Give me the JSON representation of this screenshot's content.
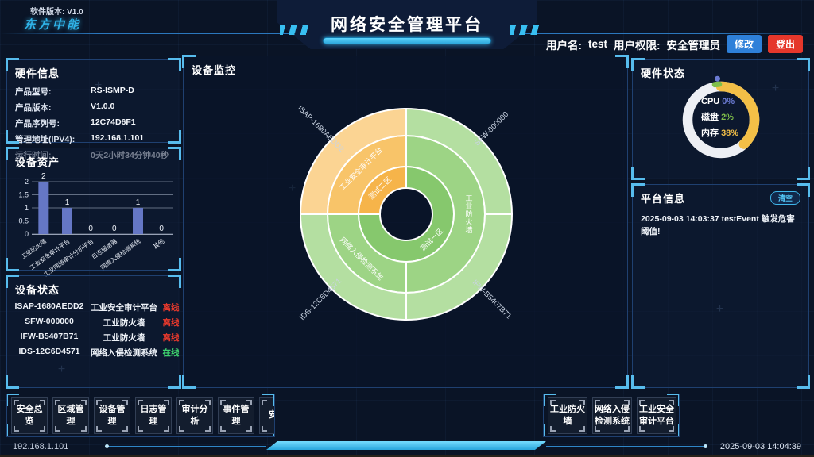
{
  "header": {
    "software_version": "软件版本: V1.0",
    "logo": "东方中能",
    "title": "网络安全管理平台",
    "username_label": "用户名:",
    "username": "test",
    "permission_label": "用户权限:",
    "permission": "安全管理员",
    "modify_button": "修改",
    "logout_button": "登出"
  },
  "hardware_info": {
    "title": "硬件信息",
    "rows": [
      {
        "label": "产品型号:",
        "value": "RS-ISMP-D"
      },
      {
        "label": "产品版本:",
        "value": "V1.0.0"
      },
      {
        "label": "产品序列号:",
        "value": "12C74D6F1"
      },
      {
        "label": "管理地址(IPV4):",
        "value": "192.168.1.101"
      },
      {
        "label": "运行时间:",
        "value": "0天2小时34分钟40秒"
      }
    ]
  },
  "device_assets": {
    "title": "设备资产",
    "chart": {
      "type": "bar",
      "bar_color": "#6577c5",
      "y_ticks": [
        0,
        0.5,
        1,
        1.5,
        2
      ],
      "y_max": 2,
      "categories": [
        "工业防火墙",
        "工业安全审计平台",
        "工业网络审计分析平台",
        "日志服务器",
        "网络入侵检测系统",
        "其他"
      ],
      "values": [
        2,
        1,
        0,
        0,
        1,
        0
      ]
    }
  },
  "device_status": {
    "title": "设备状态",
    "rows": [
      {
        "device": "ISAP-1680AEDD2",
        "type": "工业安全审计平台",
        "status": "离线",
        "status_color": "#e8392c"
      },
      {
        "device": "SFW-000000",
        "type": "工业防火墙",
        "status": "离线",
        "status_color": "#e8392c"
      },
      {
        "device": "IFW-B5407B71",
        "type": "工业防火墙",
        "status": "离线",
        "status_color": "#e8392c"
      },
      {
        "device": "IDS-12C6D4571",
        "type": "网络入侵检测系统",
        "status": "在线",
        "status_color": "#3ed26e"
      }
    ]
  },
  "device_monitor": {
    "title": "设备监控",
    "sunburst": {
      "type": "sunburst",
      "stroke": "#ffffff",
      "rings": {
        "inner": [
          33,
          60
        ],
        "middle": [
          60,
          99
        ],
        "outer": [
          99,
          133
        ]
      },
      "segments": [
        {
          "ring": "inner",
          "start": 0,
          "end": 270,
          "color": "#86c86d",
          "label": "测试一区",
          "label_angle": 135,
          "label_r": 46,
          "label_rotate": -45
        },
        {
          "ring": "inner",
          "start": 270,
          "end": 360,
          "color": "#f6b44a",
          "label": "测试二区",
          "label_angle": 315,
          "label_r": 46,
          "label_rotate": -45
        },
        {
          "ring": "middle",
          "start": 0,
          "end": 180,
          "color": "#9dd485",
          "label": "工业防火墙",
          "label_angle": 90,
          "label_r": 79,
          "label_vertical": true
        },
        {
          "ring": "middle",
          "start": 180,
          "end": 270,
          "color": "#9dd485",
          "label": "网络入侵检测系统",
          "label_angle": 225,
          "label_r": 80,
          "label_rotate": 45
        },
        {
          "ring": "middle",
          "start": 270,
          "end": 360,
          "color": "#f8c469",
          "label": "工业安全审计平台",
          "label_angle": 315,
          "label_r": 80,
          "label_rotate": -45
        },
        {
          "ring": "outer",
          "start": 0,
          "end": 90,
          "color": "#b4dfa1",
          "label": "SFW-000000",
          "label_angle": 45,
          "label_r": 152,
          "label_rotate": -45,
          "outside": true
        },
        {
          "ring": "outer",
          "start": 90,
          "end": 180,
          "color": "#b4dfa1",
          "label": "IFW-B5407B71",
          "label_angle": 135,
          "label_r": 152,
          "label_rotate": 45,
          "outside": true
        },
        {
          "ring": "outer",
          "start": 180,
          "end": 270,
          "color": "#b4dfa1",
          "label": "IDS-12C6D4571",
          "label_angle": 225,
          "label_r": 152,
          "label_rotate": -45,
          "outside": true
        },
        {
          "ring": "outer",
          "start": 270,
          "end": 360,
          "color": "#fbd493",
          "label": "ISAP-1680AEDD2",
          "label_angle": 315,
          "label_r": 152,
          "label_rotate": 45,
          "outside": true
        }
      ]
    }
  },
  "hardware_status": {
    "title": "硬件状态",
    "track_color": "#edeff4",
    "metrics": [
      {
        "label": "CPU",
        "value": "0%",
        "color": "#6b7bd3",
        "arc_percent": 0
      },
      {
        "label": "磁盘",
        "value": "2%",
        "color": "#7fbf4a",
        "arc_percent": 2
      },
      {
        "label": "内存",
        "value": "38%",
        "color": "#f3bf47",
        "arc_percent": 38
      }
    ]
  },
  "platform_info": {
    "title": "平台信息",
    "clear_button": "清空",
    "message": "2025-09-03 14:03:37 testEvent 触发危害阈值!"
  },
  "bottom_nav": {
    "left": [
      "安全总览",
      "区域管理",
      "设备管理",
      "日志管理",
      "审计分析",
      "事件管理",
      "安全"
    ],
    "right": [
      "工业防火墙",
      "网络入侵检测系统",
      "工业安全审计平台"
    ]
  },
  "status_bar": {
    "ip": "192.168.1.101",
    "datetime": "2025-09-03 14:04:39"
  }
}
